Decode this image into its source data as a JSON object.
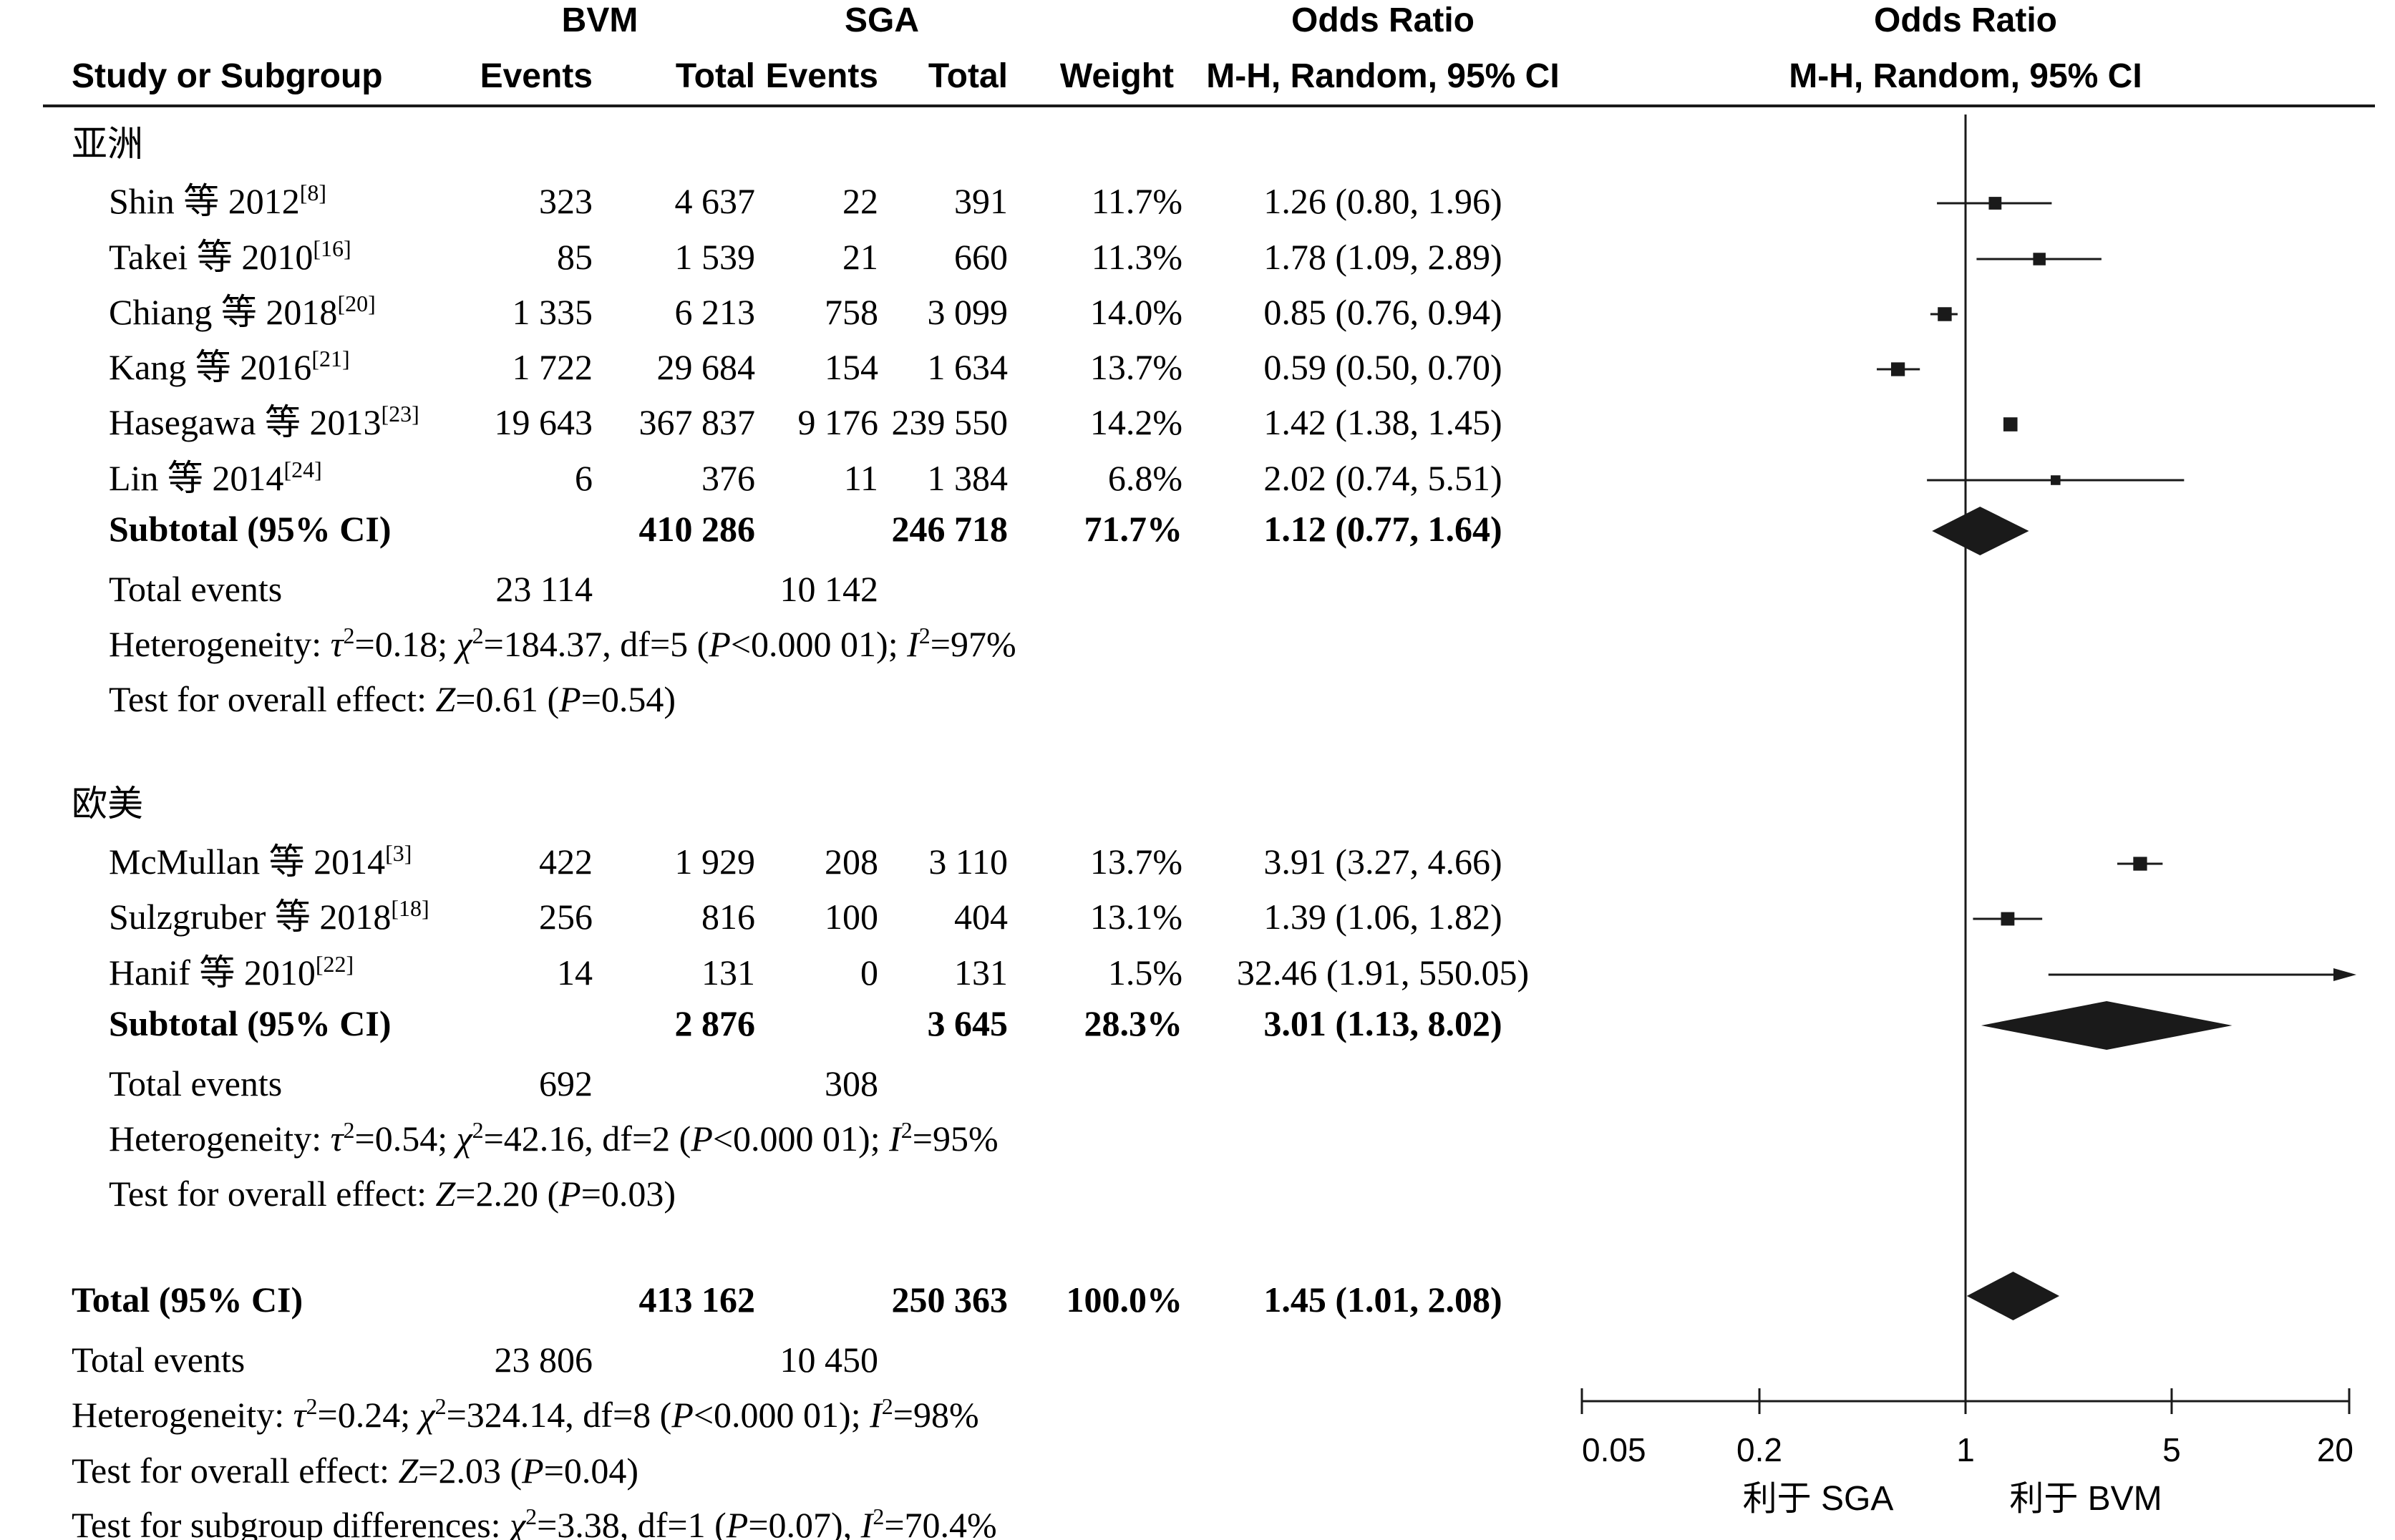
{
  "header": {
    "group1": "BVM",
    "group2": "SGA",
    "or_top": "Odds Ratio",
    "plot_top": "Odds Ratio",
    "study_col": "Study or Subgroup",
    "events1": "Events",
    "total1": "Total",
    "events2": "Events",
    "total2": "Total",
    "weight": "Weight",
    "or_method": "M-H, Random, 95% CI",
    "plot_method": "M-H, Random, 95% CI"
  },
  "subgroups": [
    {
      "title": "亚洲",
      "studies": [
        {
          "name": "Shin 等 2012",
          "ref": "[8]",
          "e1": "323",
          "t1": "4 637",
          "e2": "22",
          "t2": "391",
          "w": "11.7%",
          "or_text": "1.26 (0.80, 1.96)",
          "or": 1.26,
          "lo": 0.8,
          "hi": 1.96
        },
        {
          "name": "Takei 等 2010",
          "ref": "[16]",
          "e1": "85",
          "t1": "1 539",
          "e2": "21",
          "t2": "660",
          "w": "11.3%",
          "or_text": "1.78 (1.09, 2.89)",
          "or": 1.78,
          "lo": 1.09,
          "hi": 2.89
        },
        {
          "name": "Chiang 等 2018",
          "ref": "[20]",
          "e1": "1 335",
          "t1": "6 213",
          "e2": "758",
          "t2": "3 099",
          "w": "14.0%",
          "or_text": "0.85 (0.76, 0.94)",
          "or": 0.85,
          "lo": 0.76,
          "hi": 0.94
        },
        {
          "name": "Kang 等 2016",
          "ref": "[21]",
          "e1": "1 722",
          "t1": "29 684",
          "e2": "154",
          "t2": "1 634",
          "w": "13.7%",
          "or_text": "0.59 (0.50, 0.70)",
          "or": 0.59,
          "lo": 0.5,
          "hi": 0.7
        },
        {
          "name": "Hasegawa 等 2013",
          "ref": "[23]",
          "e1": "19 643",
          "t1": "367 837",
          "e2": "9 176",
          "t2": "239 550",
          "w": "14.2%",
          "or_text": "1.42 (1.38, 1.45)",
          "or": 1.42,
          "lo": 1.38,
          "hi": 1.45
        },
        {
          "name": "Lin 等 2014",
          "ref": "[24]",
          "e1": "6",
          "t1": "376",
          "e2": "11",
          "t2": "1 384",
          "w": "6.8%",
          "or_text": "2.02 (0.74, 5.51)",
          "or": 2.02,
          "lo": 0.74,
          "hi": 5.51
        }
      ],
      "subtotal": {
        "label": "Subtotal (95% CI)",
        "t1": "410 286",
        "t2": "246 718",
        "w": "71.7%",
        "or_text": "1.12 (0.77, 1.64)",
        "or": 1.12,
        "lo": 0.77,
        "hi": 1.64
      },
      "events": {
        "label": "Total events",
        "e1": "23 114",
        "e2": "10 142"
      },
      "het": {
        "pre": "Heterogeneity: ",
        "tau": "τ",
        "s1": "=0.18; ",
        "chi": "χ",
        "s2": "=184.37, df=5 (",
        "p": "P",
        "s3": "<0.000 01); ",
        "i": "I",
        "s4": "=97%"
      },
      "effect": {
        "pre": "Test for overall effect: ",
        "z": "Z",
        "s1": "=0.61 (",
        "p": "P",
        "s2": "=0.54)"
      }
    },
    {
      "title": "欧美",
      "studies": [
        {
          "name": "McMullan 等 2014",
          "ref": "[3]",
          "e1": "422",
          "t1": "1 929",
          "e2": "208",
          "t2": "3 110",
          "w": "13.7%",
          "or_text": "3.91 (3.27, 4.66)",
          "or": 3.91,
          "lo": 3.27,
          "hi": 4.66
        },
        {
          "name": "Sulzgruber 等 2018",
          "ref": "[18]",
          "e1": "256",
          "t1": "816",
          "e2": "100",
          "t2": "404",
          "w": "13.1%",
          "or_text": "1.39 (1.06, 1.82)",
          "or": 1.39,
          "lo": 1.06,
          "hi": 1.82
        },
        {
          "name": "Hanif 等 2010",
          "ref": "[22]",
          "e1": "14",
          "t1": "131",
          "e2": "0",
          "t2": "131",
          "w": "1.5%",
          "or_text": "32.46 (1.91, 550.05)",
          "or": 32.46,
          "lo": 1.91,
          "hi": 550.05
        }
      ],
      "subtotal": {
        "label": "Subtotal (95% CI)",
        "t1": "2 876",
        "t2": "3 645",
        "w": "28.3%",
        "or_text": "3.01 (1.13, 8.02)",
        "or": 3.01,
        "lo": 1.13,
        "hi": 8.02
      },
      "events": {
        "label": "Total events",
        "e1": "692",
        "e2": "308"
      },
      "het": {
        "pre": "Heterogeneity: ",
        "tau": "τ",
        "s1": "=0.54; ",
        "chi": "χ",
        "s2": "=42.16, df=2 (",
        "p": "P",
        "s3": "<0.000 01); ",
        "i": "I",
        "s4": "=95%"
      },
      "effect": {
        "pre": "Test for overall effect: ",
        "z": "Z",
        "s1": "=2.20 (",
        "p": "P",
        "s2": "=0.03)"
      }
    }
  ],
  "total": {
    "label": "Total (95% CI)",
    "t1": "413 162",
    "t2": "250 363",
    "w": "100.0%",
    "or_text": "1.45 (1.01, 2.08)",
    "or": 1.45,
    "lo": 1.01,
    "hi": 2.08,
    "events": {
      "label": "Total events",
      "e1": "23 806",
      "e2": "10 450"
    },
    "het": {
      "pre": "Heterogeneity: ",
      "tau": "τ",
      "s1": "=0.24; ",
      "chi": "χ",
      "s2": "=324.14, df=8 (",
      "p": "P",
      "s3": "<0.000 01); ",
      "i": "I",
      "s4": "=98%"
    },
    "effect": {
      "pre": "Test for overall effect: ",
      "z": "Z",
      "s1": "=2.03 (",
      "p": "P",
      "s2": "=0.04)"
    },
    "subgroup_diff": {
      "pre": "Test for subgroup differences: ",
      "chi": "χ",
      "s1": "=3.38, df=1 (",
      "p": "P",
      "s2": "=0.07), ",
      "i": "I",
      "s3": "=70.4%"
    }
  },
  "axis": {
    "ticks": [
      "0.05",
      "0.2",
      "1",
      "5",
      "20"
    ],
    "favours_left": "利于 SGA",
    "favours_right": "利于 BVM"
  },
  "chart_data": {
    "type": "forest",
    "measure": "Odds Ratio (M-H, Random, 95% CI)",
    "scale": "log",
    "xlim": [
      0.05,
      20
    ],
    "null_line": 1,
    "tick_values": [
      0.05,
      0.2,
      1,
      5,
      20
    ],
    "series_colors": {
      "marker": "#1a1a1a"
    }
  }
}
